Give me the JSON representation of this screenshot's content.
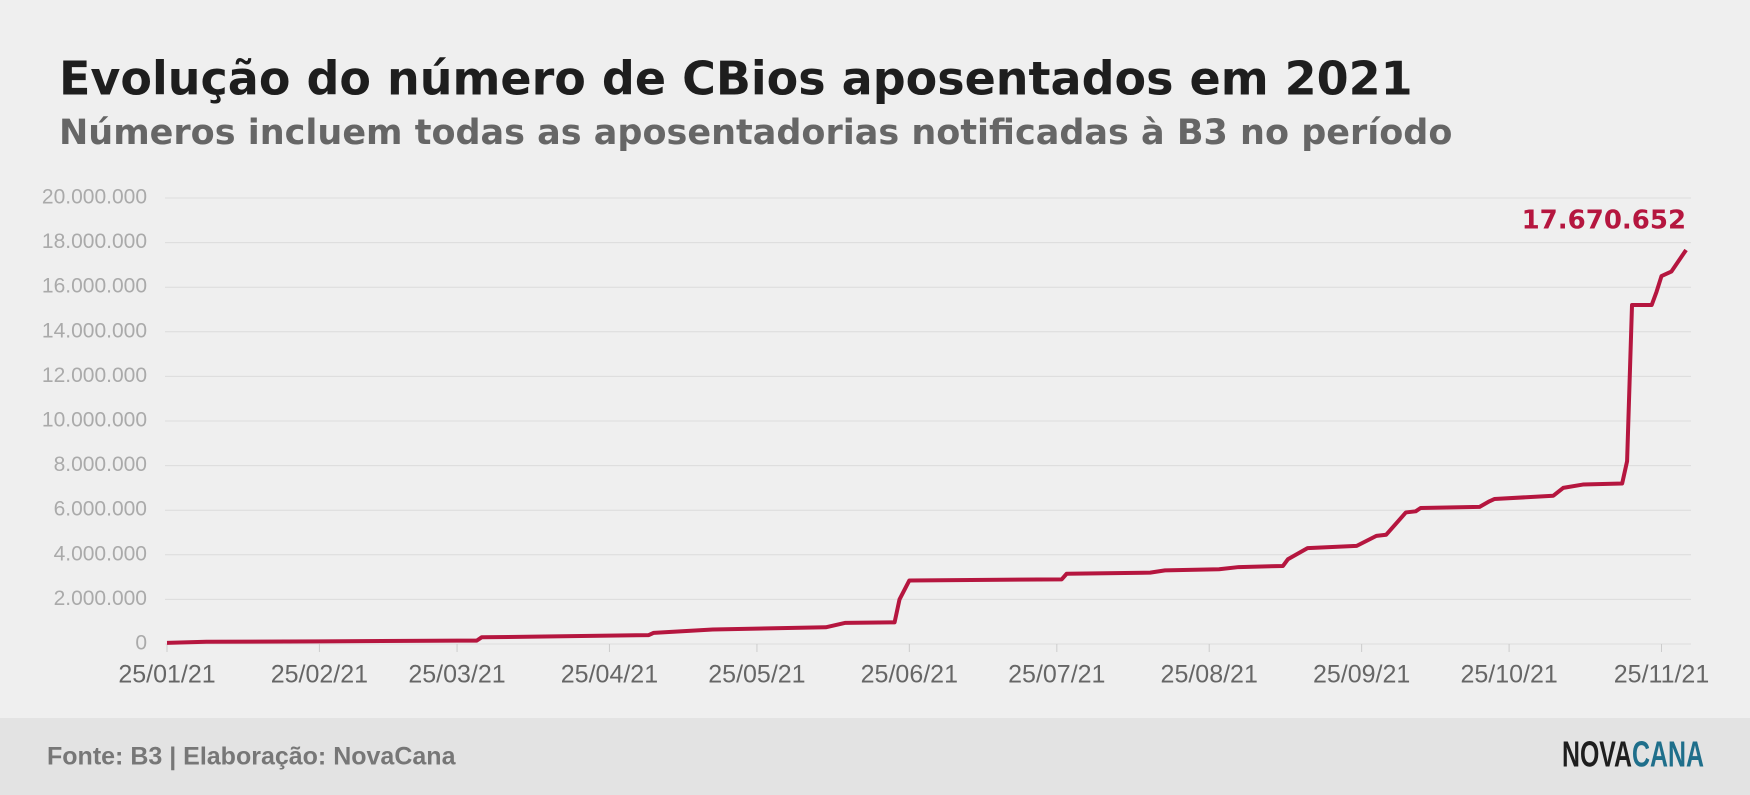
{
  "chart_data": {
    "type": "line",
    "title": "Evolução do número de CBios aposentados em 2021",
    "subtitle": "Números incluem todas as aposentadorias notificadas à B3 no período",
    "source": "Fonte: B3 | Elaboração: NovaCana",
    "logo": [
      "NOVA",
      "CANA"
    ],
    "x": [
      "2021-01-25",
      "2021-02-02",
      "2021-02-25",
      "2021-03-25",
      "2021-03-29",
      "2021-03-30",
      "2021-05-03",
      "2021-05-04",
      "2021-05-16",
      "2021-06-08",
      "2021-06-12",
      "2021-06-22",
      "2021-06-23",
      "2021-06-25",
      "2021-07-26",
      "2021-07-27",
      "2021-08-13",
      "2021-08-16",
      "2021-08-27",
      "2021-08-31",
      "2021-09-09",
      "2021-09-10",
      "2021-09-14",
      "2021-09-24",
      "2021-09-28",
      "2021-09-30",
      "2021-10-04",
      "2021-10-06",
      "2021-10-07",
      "2021-10-19",
      "2021-10-21",
      "2021-10-22",
      "2021-11-03",
      "2021-11-05",
      "2021-11-09",
      "2021-11-17",
      "2021-11-18",
      "2021-11-19",
      "2021-11-23",
      "2021-11-24",
      "2021-11-25",
      "2021-11-27",
      "2021-11-30"
    ],
    "series": [
      {
        "name": "CBios aposentados",
        "color": "#b5163f",
        "values": [
          50000,
          100000,
          120000,
          150000,
          150000,
          300000,
          400000,
          500000,
          650000,
          750000,
          950000,
          970000,
          2000000,
          2850000,
          2900000,
          3150000,
          3200000,
          3300000,
          3350000,
          3450000,
          3500000,
          3800000,
          4300000,
          4400000,
          4850000,
          4900000,
          5900000,
          5950000,
          6100000,
          6150000,
          6400000,
          6500000,
          6650000,
          7000000,
          7150000,
          7200000,
          8200000,
          15200000,
          15200000,
          15800000,
          16500000,
          16700000,
          17670652
        ],
        "value_labels": [
          null,
          null,
          null,
          null,
          null,
          null,
          null,
          null,
          null,
          null,
          null,
          null,
          null,
          null,
          null,
          null,
          null,
          null,
          null,
          null,
          null,
          null,
          null,
          null,
          null,
          null,
          null,
          null,
          null,
          null,
          null,
          null,
          null,
          null,
          null,
          null,
          null,
          null,
          null,
          null,
          null,
          null,
          "17.670.652"
        ]
      }
    ],
    "xlim": [
      "2021-01-25",
      "2021-12-01"
    ],
    "xticks": [
      {
        "value": "2021-01-25",
        "label": "25/01/21"
      },
      {
        "value": "2021-02-25",
        "label": "25/02/21"
      },
      {
        "value": "2021-03-25",
        "label": "25/03/21"
      },
      {
        "value": "2021-04-25",
        "label": "25/04/21"
      },
      {
        "value": "2021-05-25",
        "label": "25/05/21"
      },
      {
        "value": "2021-06-25",
        "label": "25/06/21"
      },
      {
        "value": "2021-07-25",
        "label": "25/07/21"
      },
      {
        "value": "2021-08-25",
        "label": "25/08/21"
      },
      {
        "value": "2021-09-25",
        "label": "25/09/21"
      },
      {
        "value": "2021-10-25",
        "label": "25/10/21"
      },
      {
        "value": "2021-11-25",
        "label": "25/11/21"
      }
    ],
    "ylim": [
      0,
      20000000
    ],
    "yticks": [
      0,
      {
        "value": 2000000,
        "label": "2.000.000"
      },
      {
        "value": 4000000,
        "label": "4.000.000"
      },
      {
        "value": 6000000,
        "label": "6.000.000"
      },
      {
        "value": 8000000,
        "label": "8.000.000"
      },
      {
        "value": 10000000,
        "label": "10.000.000"
      },
      {
        "value": 12000000,
        "label": "12.000.000"
      },
      {
        "value": 14000000,
        "label": "14.000.000"
      },
      {
        "value": 16000000,
        "label": "16.000.000"
      },
      {
        "value": 18000000,
        "label": "18.000.000"
      },
      {
        "value": 20000000,
        "label": "20.000.000"
      }
    ],
    "grid": true
  }
}
